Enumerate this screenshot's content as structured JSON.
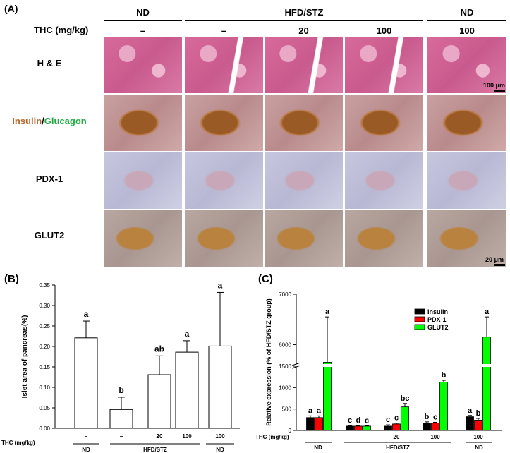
{
  "panelA": {
    "label": "(A)",
    "groups": [
      {
        "name": "ND"
      },
      {
        "name": "HFD/STZ"
      },
      {
        "name": "ND"
      }
    ],
    "thc_label": "THC (mg/kg)",
    "thc_values": [
      "–",
      "–",
      "20",
      "100",
      "100"
    ],
    "rows": [
      "H & E",
      "Insulin",
      "Glucagon",
      "PDX-1",
      "GLUT2"
    ],
    "scalebar_top": "100 μm",
    "scalebar_bottom": "20 μm"
  },
  "chart_data": [
    {
      "type": "bar",
      "panel": "(B)",
      "categories": [
        "–",
        "–",
        "20",
        "100",
        "100"
      ],
      "groups": [
        "ND",
        "HFD/STZ",
        "ND"
      ],
      "xlabel": "THC (mg/kg)",
      "ylabel": "Islet area of pancreas(%)",
      "ylim": [
        0,
        0.35
      ],
      "yticks": [
        "0.00",
        "0.05",
        "0.10",
        "0.15",
        "0.20",
        "0.25",
        "0.30",
        "0.35"
      ],
      "values": [
        0.221,
        0.046,
        0.131,
        0.186,
        0.201
      ],
      "errors": [
        0.041,
        0.03,
        0.046,
        0.028,
        0.131
      ],
      "letters": [
        "a",
        "b",
        "ab",
        "a",
        "a"
      ]
    },
    {
      "type": "bar",
      "panel": "(C)",
      "categories": [
        "–",
        "–",
        "20",
        "100",
        "100"
      ],
      "groups": [
        "ND",
        "HFD/STZ",
        "ND"
      ],
      "xlabel": "THC (mg/kg)",
      "ylabel": "Relative expression (% of HFD/STZ group)",
      "yticks_low": [
        "0",
        "500",
        "1000",
        "1500"
      ],
      "yticks_high": [
        "6000",
        "7000"
      ],
      "axis_break": [
        1500,
        5600
      ],
      "series": [
        {
          "name": "Insulin",
          "color": "#000000",
          "values": [
            300,
            100,
            100,
            170,
            320
          ],
          "errors": [
            40,
            15,
            30,
            30,
            30
          ],
          "letters": [
            "a",
            "c",
            "c",
            "b",
            "a"
          ]
        },
        {
          "name": "PDX-1",
          "color": "#ff0000",
          "values": [
            300,
            100,
            150,
            170,
            240
          ],
          "errors": [
            40,
            15,
            20,
            20,
            40
          ],
          "letters": [
            "a",
            "d",
            "c",
            "c",
            "b"
          ]
        },
        {
          "name": "GLUT2",
          "color": "#00ff00",
          "values": [
            5650,
            100,
            550,
            1130,
            6150
          ],
          "errors": [
            900,
            10,
            80,
            40,
            400
          ],
          "letters": [
            "a",
            "c",
            "bc",
            "b",
            "a"
          ]
        }
      ]
    }
  ]
}
